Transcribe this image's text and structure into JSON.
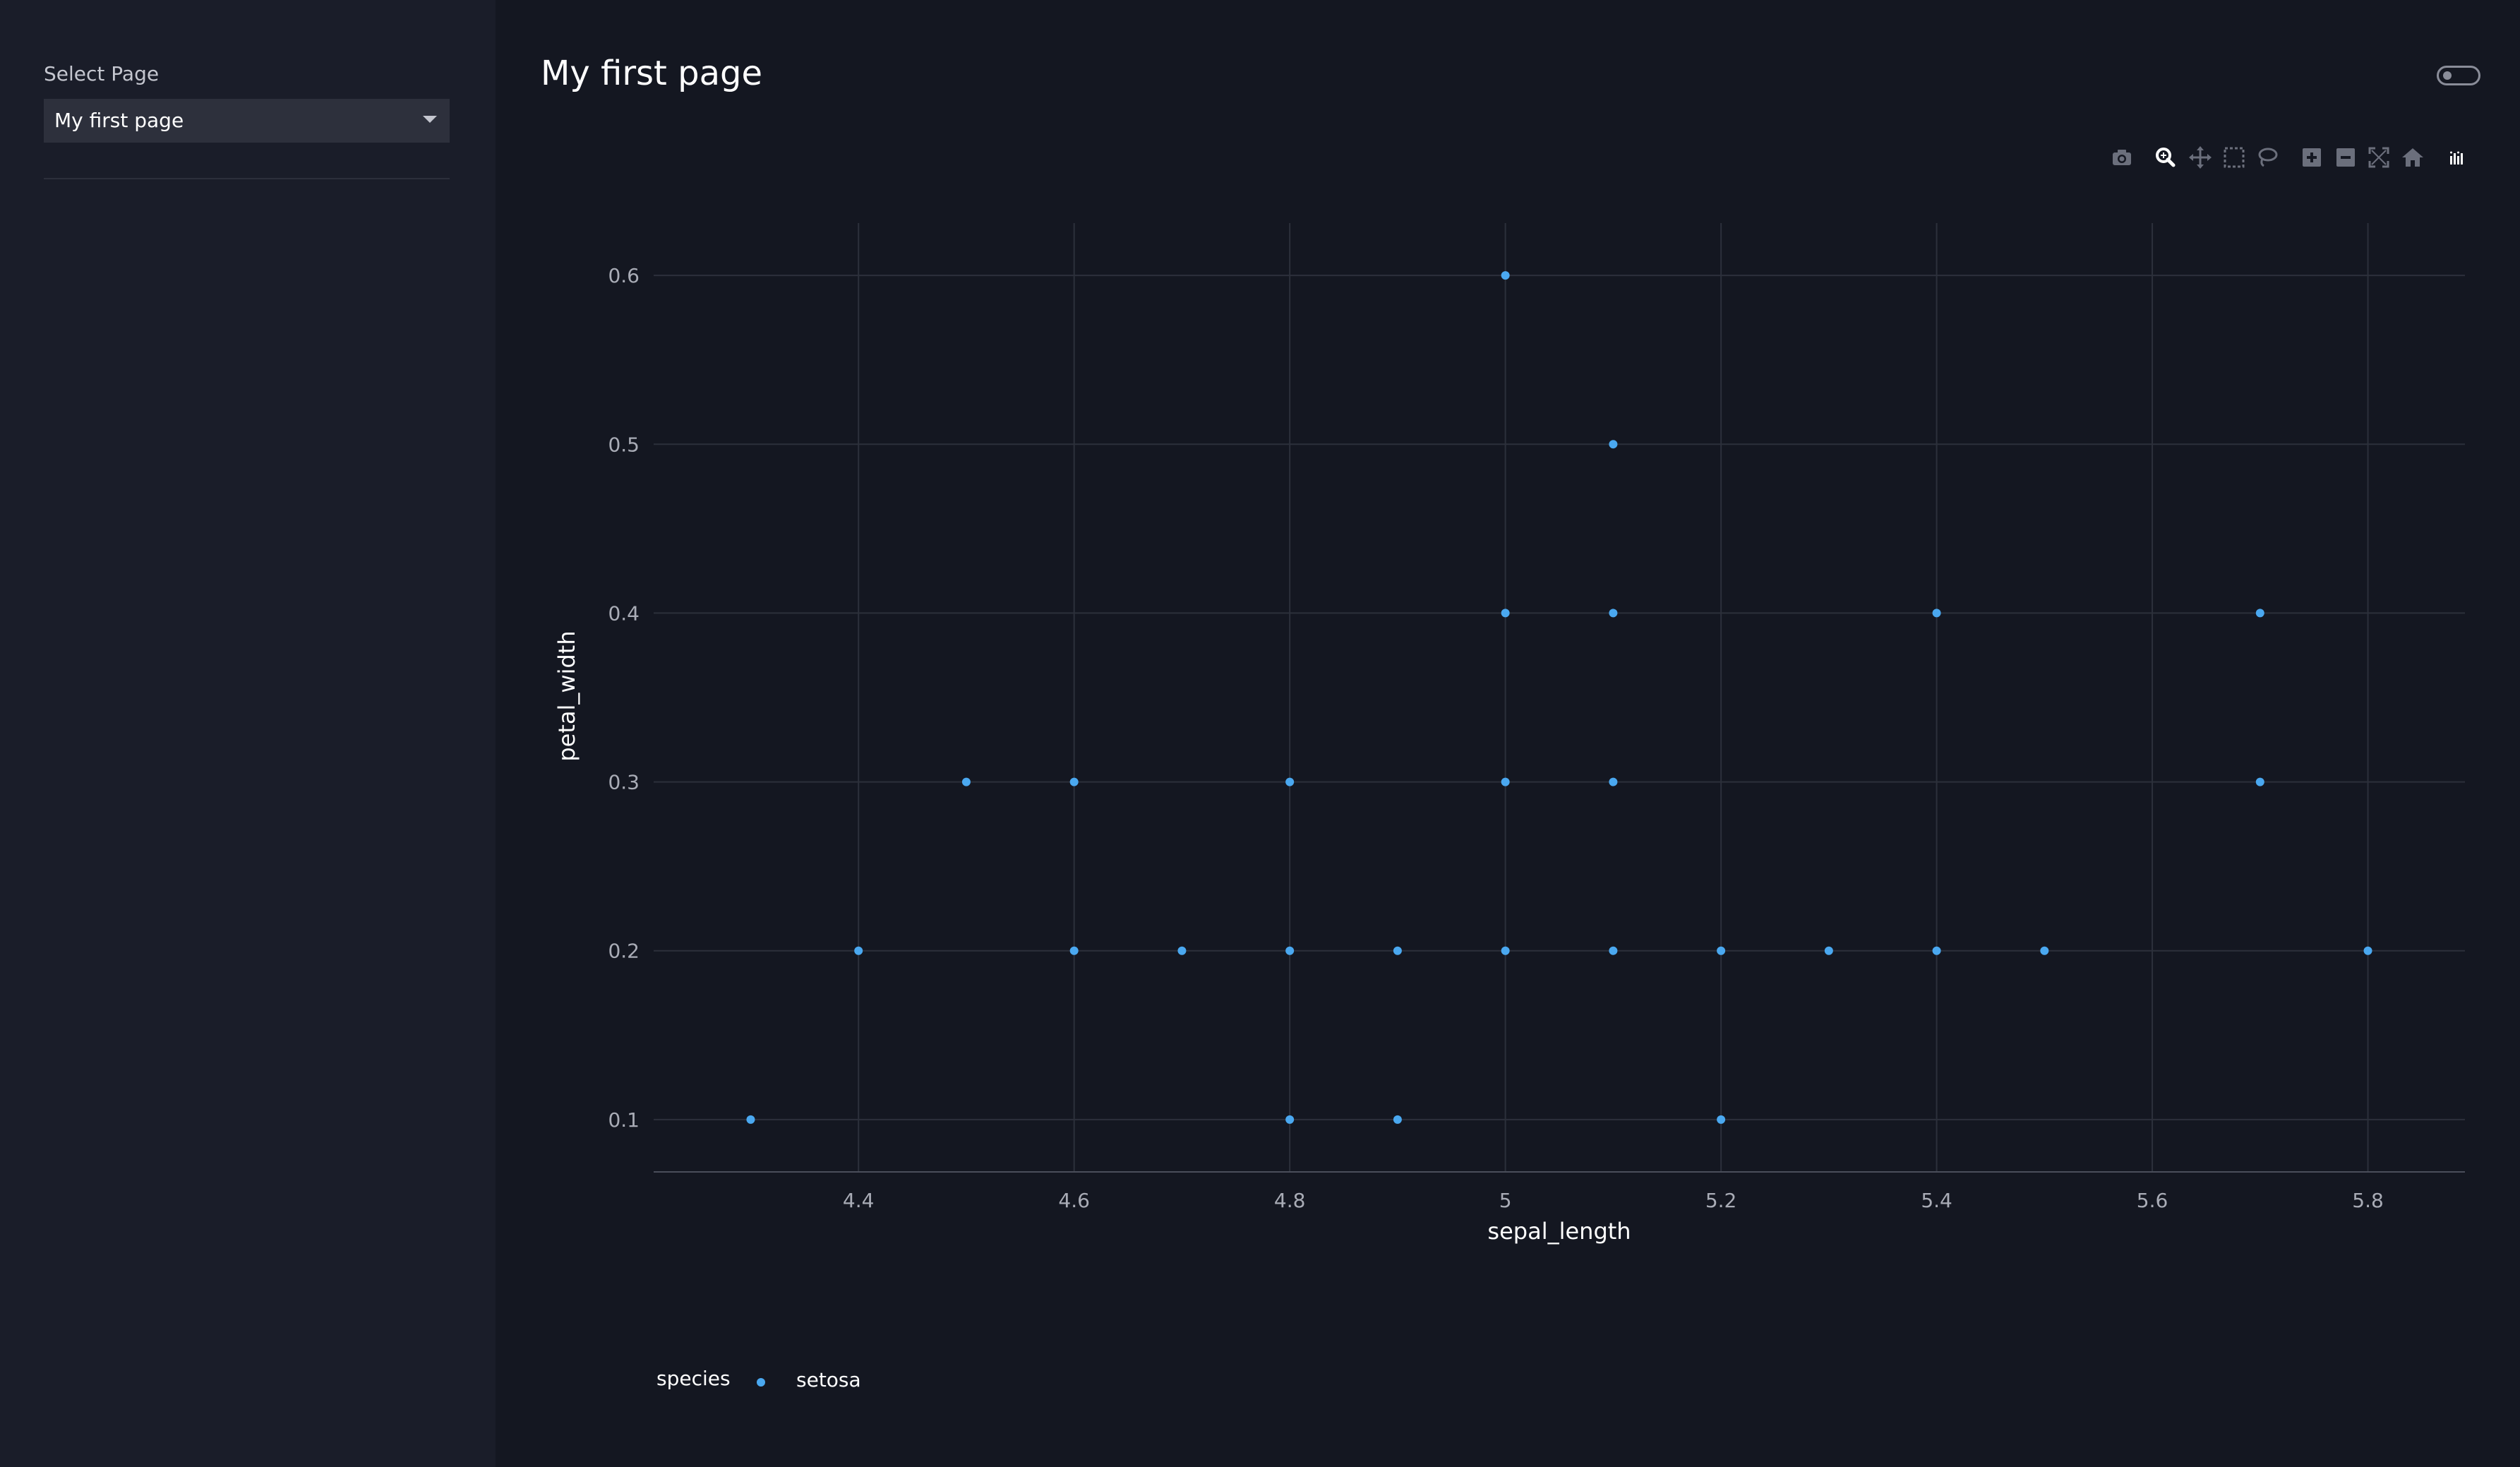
{
  "sidebar": {
    "select_label": "Select Page",
    "select_value": "My first page"
  },
  "main": {
    "title": "My first page"
  },
  "modebar": {
    "buttons": [
      "camera-icon",
      "zoom-icon",
      "pan-icon",
      "box-select-icon",
      "lasso-select-icon",
      "zoom-in-icon",
      "zoom-out-icon",
      "autoscale-icon",
      "reset-axes-icon",
      "plotly-logo-icon"
    ]
  },
  "legend": {
    "title": "species",
    "items": [
      "setosa"
    ]
  },
  "colors": {
    "marker": "#4aa8f0",
    "background": "#141721",
    "sidebar": "#1a1d29",
    "grid": "#2c303b"
  },
  "chart_data": {
    "type": "scatter",
    "xlabel": "sepal_length",
    "ylabel": "petal_width",
    "xlim": [
      4.21,
      5.89
    ],
    "ylim": [
      0.069,
      0.631
    ],
    "xticks": [
      4.4,
      4.6,
      4.8,
      5,
      5.2,
      5.4,
      5.6,
      5.8
    ],
    "xtick_labels": [
      "4.4",
      "4.6",
      "4.8",
      "5",
      "5.2",
      "5.4",
      "5.6",
      "5.8"
    ],
    "yticks": [
      0.1,
      0.2,
      0.3,
      0.4,
      0.5,
      0.6
    ],
    "ytick_labels": [
      "0.1",
      "0.2",
      "0.3",
      "0.4",
      "0.5",
      "0.6"
    ],
    "grid": true,
    "legend_position": "bottom-left",
    "series": [
      {
        "name": "setosa",
        "points": [
          [
            5.0,
            0.6
          ],
          [
            5.1,
            0.5
          ],
          [
            5.0,
            0.4
          ],
          [
            5.1,
            0.4
          ],
          [
            5.4,
            0.4
          ],
          [
            5.7,
            0.4
          ],
          [
            4.5,
            0.3
          ],
          [
            4.6,
            0.3
          ],
          [
            4.8,
            0.3
          ],
          [
            5.0,
            0.3
          ],
          [
            5.1,
            0.3
          ],
          [
            5.7,
            0.3
          ],
          [
            4.4,
            0.2
          ],
          [
            4.6,
            0.2
          ],
          [
            4.7,
            0.2
          ],
          [
            4.8,
            0.2
          ],
          [
            4.9,
            0.2
          ],
          [
            5.0,
            0.2
          ],
          [
            5.1,
            0.2
          ],
          [
            5.2,
            0.2
          ],
          [
            5.3,
            0.2
          ],
          [
            5.4,
            0.2
          ],
          [
            5.5,
            0.2
          ],
          [
            5.8,
            0.2
          ],
          [
            4.3,
            0.1
          ],
          [
            4.8,
            0.1
          ],
          [
            4.9,
            0.1
          ],
          [
            5.2,
            0.1
          ]
        ]
      }
    ]
  }
}
